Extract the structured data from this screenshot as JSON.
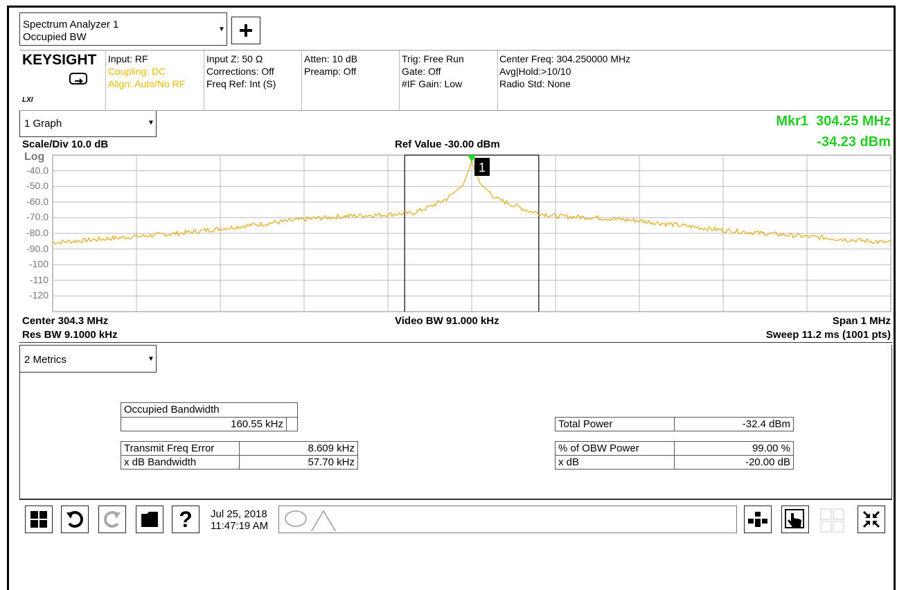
{
  "title_box": {
    "line1": "Spectrum Analyzer 1",
    "line2": "Occupied BW"
  },
  "brand": {
    "name": "KEYSIGHT",
    "lxi": "LXI"
  },
  "info": {
    "col1": [
      "Input: RF",
      "Coupling: DC",
      "Align: Auto/No RF"
    ],
    "col2": [
      "Input Z: 50 Ω",
      "Corrections: Off",
      "Freq Ref: Int (S)"
    ],
    "col3": [
      "Atten: 10 dB",
      "Preamp: Off"
    ],
    "col4": [
      "Trig: Free Run",
      "Gate: Off",
      "#IF Gain: Low"
    ],
    "col5": [
      "Center Freq: 304.250000 MHz",
      "Avg|Hold:>10/10",
      "Radio Std: None"
    ]
  },
  "graph": {
    "dropdown": "1 Graph",
    "marker_freq": "Mkr1  304.25 MHz",
    "marker_amp": "-34.23 dBm",
    "scale": "Scale/Div 10.0 dB",
    "ref_value": "Ref Value -30.00 dBm",
    "log_label": "Log",
    "y_ticks": [
      "-40.0",
      "-50.0",
      "-60.0",
      "-70.0",
      "-80.0",
      "-90.0",
      "-100",
      "-110",
      "-120"
    ],
    "marker_label": "1",
    "center": "Center 304.3 MHz",
    "res_bw": "Res BW 9.1000 kHz",
    "video_bw": "Video BW 91.000 kHz",
    "span": "Span 1 MHz",
    "sweep": "Sweep 11.2 ms (1001 pts)"
  },
  "metrics": {
    "dropdown": "2 Metrics",
    "obw_label": "Occupied Bandwidth",
    "obw_value": "160.55 kHz",
    "tfe_label": "Transmit Freq Error",
    "tfe_value": "8.609 kHz",
    "xbw_label": "x dB Bandwidth",
    "xbw_value": "57.70 kHz",
    "tp_label": "Total Power",
    "tp_value": "-32.4 dBm",
    "obwp_label": "% of OBW Power",
    "obwp_value": "99.00 %",
    "xdb_label": "x dB",
    "xdb_value": "-20.00 dB"
  },
  "taskbar": {
    "date": "Jul 25, 2018",
    "time": "11:47:19 AM"
  },
  "chart_data": {
    "type": "line",
    "ylabel": "dBm",
    "ylim": [
      -130,
      -30
    ],
    "x": [
      303.75,
      303.8,
      303.85,
      303.9,
      303.95,
      304.0,
      304.05,
      304.1,
      304.15,
      304.18,
      304.2,
      304.22,
      304.24,
      304.25,
      304.26,
      304.28,
      304.3,
      304.32,
      304.35,
      304.4,
      304.45,
      304.5,
      304.55,
      304.6,
      304.65,
      304.7,
      304.75
    ],
    "series": [
      {
        "values": [
          -86,
          -84,
          -82,
          -80,
          -77,
          -74,
          -71,
          -69,
          -68,
          -67,
          -63,
          -58,
          -49,
          -34,
          -48,
          -58,
          -62,
          -66,
          -69,
          -70,
          -72,
          -75,
          -78,
          -80,
          -82,
          -84,
          -86
        ]
      }
    ],
    "marker": {
      "x": 304.25,
      "y": -34.23
    },
    "obw_lines": [
      304.17,
      304.33
    ],
    "grid": true
  }
}
